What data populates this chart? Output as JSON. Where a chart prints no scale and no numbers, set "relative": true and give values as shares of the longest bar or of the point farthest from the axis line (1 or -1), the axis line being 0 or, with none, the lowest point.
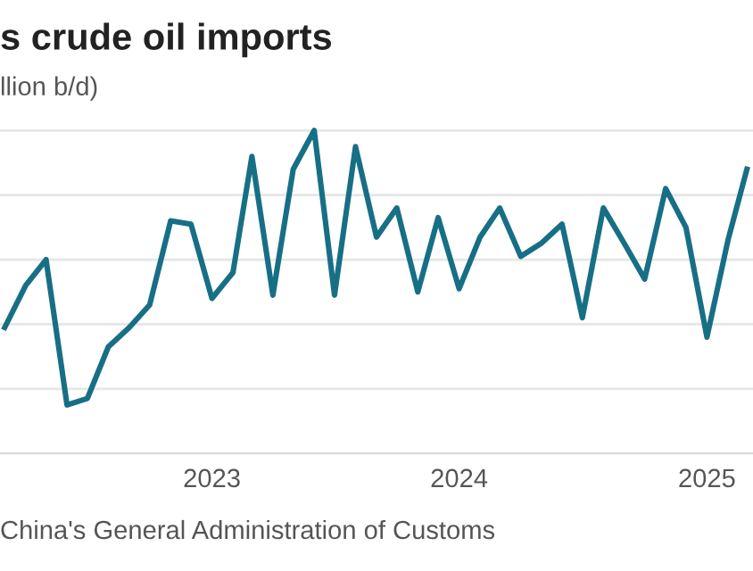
{
  "chart_data": {
    "type": "line",
    "title": "s crude oil imports",
    "subtitle": "llion b/d)",
    "annotations": [
      "China's General Administration of Customs"
    ],
    "relative": true,
    "grid": "y",
    "marker": "none",
    "line_style": "solid",
    "x": [
      "2022-03",
      "2022-04",
      "2022-05",
      "2022-06",
      "2022-07",
      "2022-08",
      "2022-09",
      "2022-10",
      "2022-11",
      "2022-12",
      "2023-01",
      "2023-02",
      "2023-03",
      "2023-04",
      "2023-05",
      "2023-06",
      "2023-07",
      "2023-08",
      "2023-09",
      "2023-10",
      "2023-11",
      "2023-12",
      "2024-01",
      "2024-02",
      "2024-03",
      "2024-04",
      "2024-05",
      "2024-06",
      "2024-07",
      "2024-08",
      "2024-09",
      "2024-10",
      "2024-11",
      "2024-12",
      "2025-01",
      "2025-02",
      "2025-03"
    ],
    "xlim": [
      "2022-02-22",
      "2025-03-10"
    ],
    "xticks": [
      "2023",
      "2024",
      "2025"
    ],
    "series": [
      {
        "color": "#176f86",
        "values": [
          0.39,
          0.52,
          0.6,
          0.15,
          0.17,
          0.33,
          0.39,
          0.46,
          0.72,
          0.71,
          0.48,
          0.56,
          0.92,
          0.49,
          0.88,
          1,
          0.49,
          0.95,
          0.67,
          0.76,
          0.5,
          0.73,
          0.51,
          0.67,
          0.76,
          0.61,
          0.65,
          0.71,
          0.42,
          0.76,
          0.65,
          0.54,
          0.82,
          0.7,
          0.36,
          0.66,
          0.88
        ]
      }
    ]
  }
}
